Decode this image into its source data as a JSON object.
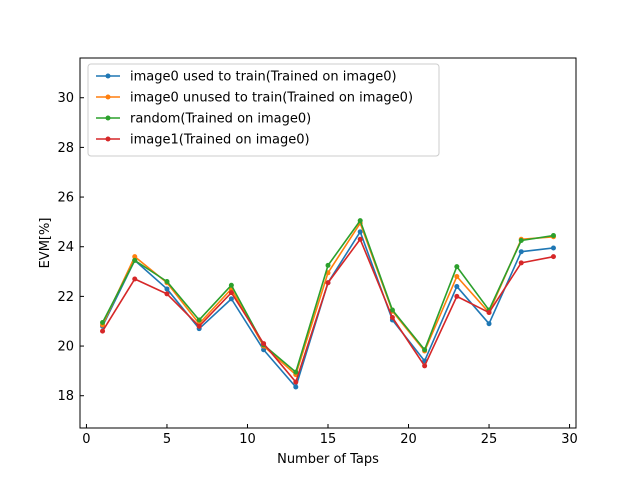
{
  "chart_data": {
    "type": "line",
    "title": "",
    "xlabel": "Number of Taps",
    "ylabel": "EVM[%]",
    "xlim": [
      -0.4,
      30.4
    ],
    "ylim": [
      16.7,
      31.6
    ],
    "xticks": [
      0,
      5,
      10,
      15,
      20,
      25,
      30
    ],
    "yticks": [
      18,
      20,
      22,
      24,
      26,
      28,
      30
    ],
    "grid": false,
    "legend_position": "top-left",
    "x": [
      1,
      3,
      5,
      7,
      9,
      11,
      13,
      15,
      17,
      19,
      21,
      23,
      25,
      27,
      29
    ],
    "series": [
      {
        "name": "image0 used to train(Trained on image0)",
        "color": "#1f77b4",
        "values": [
          20.8,
          23.45,
          22.3,
          20.7,
          21.9,
          19.85,
          18.35,
          22.55,
          24.6,
          21.05,
          19.4,
          22.4,
          20.9,
          23.8,
          23.95
        ]
      },
      {
        "name": "image0 unused to train(Trained on image0)",
        "color": "#ff7f0e",
        "values": [
          20.85,
          23.6,
          22.55,
          20.9,
          22.3,
          20.0,
          18.85,
          22.95,
          24.95,
          21.4,
          19.8,
          22.8,
          21.35,
          24.3,
          24.4
        ]
      },
      {
        "name": "random(Trained on image0)",
        "color": "#2ca02c",
        "values": [
          20.95,
          23.45,
          22.6,
          21.05,
          22.45,
          20.05,
          18.95,
          23.25,
          25.05,
          21.45,
          19.85,
          23.2,
          21.45,
          24.25,
          24.45
        ]
      },
      {
        "name": "image1(Trained on image0)",
        "color": "#d62728",
        "values": [
          20.6,
          22.7,
          22.1,
          20.8,
          22.15,
          20.1,
          18.55,
          22.55,
          24.3,
          21.15,
          19.2,
          22.0,
          21.35,
          23.35,
          23.6
        ]
      }
    ]
  }
}
